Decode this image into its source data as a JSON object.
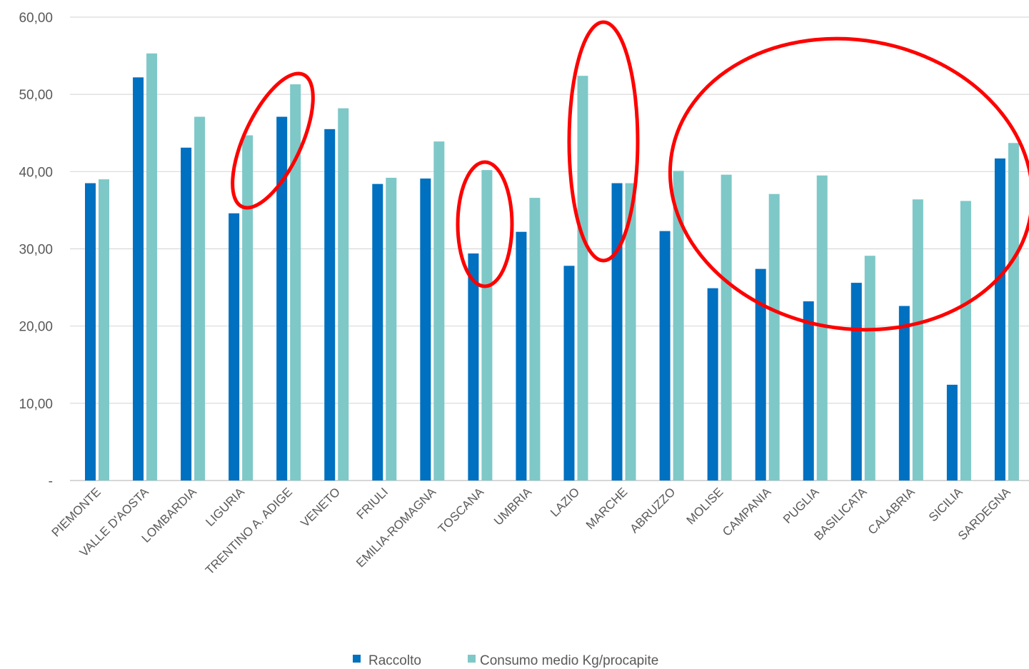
{
  "chart_data": {
    "type": "bar",
    "title": "",
    "xlabel": "",
    "ylabel": "",
    "ylim": [
      0,
      60
    ],
    "y_ticks": [
      {
        "value": 0,
        "label": "-"
      },
      {
        "value": 10,
        "label": "10,00"
      },
      {
        "value": 20,
        "label": "20,00"
      },
      {
        "value": 30,
        "label": "30,00"
      },
      {
        "value": 40,
        "label": "40,00"
      },
      {
        "value": 50,
        "label": "50,00"
      },
      {
        "value": 60,
        "label": "60,00"
      }
    ],
    "grid": true,
    "legend_position": "bottom-center",
    "categories": [
      "PIEMONTE",
      "VALLE D'AOSTA",
      "LOMBARDIA",
      "LIGURIA",
      "TRENTINO A. ADIGE",
      "VENETO",
      "FRIULI",
      "EMILIA-ROMAGNA",
      "TOSCANA",
      "UMBRIA",
      "LAZIO",
      "MARCHE",
      "ABRUZZO",
      "MOLISE",
      "CAMPANIA",
      "PUGLIA",
      "BASILICATA",
      "CALABRIA",
      "SICILIA",
      "SARDEGNA"
    ],
    "series": [
      {
        "name": "Raccolto",
        "color": "#0070c0",
        "values": [
          38.5,
          52.2,
          43.1,
          34.6,
          47.1,
          45.5,
          38.4,
          39.1,
          29.4,
          32.2,
          27.8,
          38.5,
          32.3,
          24.9,
          27.4,
          23.2,
          25.6,
          22.6,
          12.4,
          41.7
        ]
      },
      {
        "name": "Consumo medio Kg/procapite",
        "color": "#7ec8c8",
        "values": [
          39.0,
          55.3,
          47.1,
          44.7,
          51.3,
          48.2,
          39.2,
          43.9,
          40.2,
          36.6,
          52.4,
          38.5,
          40.1,
          39.6,
          37.1,
          39.5,
          29.1,
          36.4,
          36.2,
          43.7
        ]
      }
    ],
    "annotations": {
      "type": "red ellipses highlighting bar groups",
      "color": "#ff0000",
      "highlighted_categories": [
        [
          "LIGURIA",
          "TRENTINO A. ADIGE"
        ],
        [
          "TOSCANA"
        ],
        [
          "LAZIO",
          "MARCHE"
        ],
        [
          "ABRUZZO",
          "MOLISE",
          "CAMPANIA",
          "PUGLIA",
          "BASILICATA",
          "CALABRIA",
          "SICILIA",
          "SARDEGNA"
        ]
      ]
    }
  }
}
